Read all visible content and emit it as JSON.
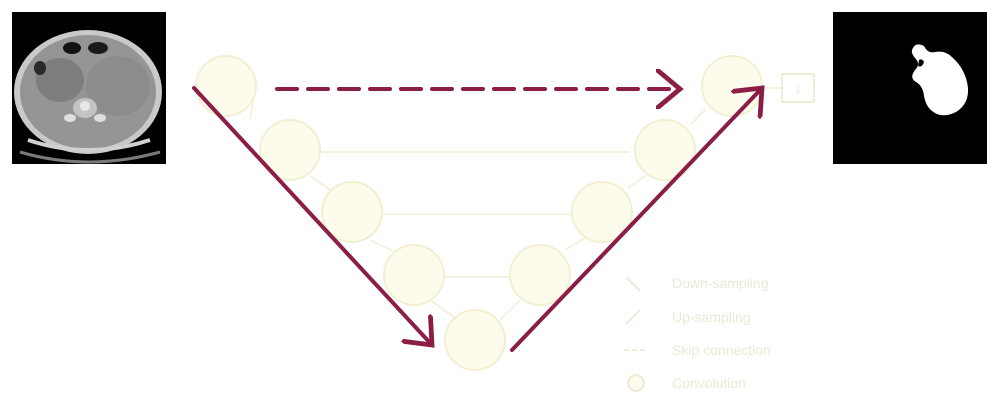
{
  "diagram": {
    "type": "u-net segmentation pipeline",
    "colors": {
      "arrow": "#8b1e46",
      "node_fill": "#fdfbec",
      "node_stroke": "#f3efd2",
      "faint_line": "#f4f1e2",
      "legend_text": "#ece8d6",
      "mask_background": "#000000",
      "mask_foreground": "#ffffff"
    },
    "images": {
      "input": "ct-scan-abdomen",
      "output": "segmentation-mask"
    },
    "output_box_label": "1",
    "legend": [
      {
        "icon": "down-arrow-icon",
        "label": "Down-sampling"
      },
      {
        "icon": "up-arrow-icon",
        "label": "Up-sampling"
      },
      {
        "icon": "dashed-arrow-icon",
        "label": "Skip connection"
      },
      {
        "icon": "circle-icon",
        "label": "Convolution"
      }
    ]
  }
}
